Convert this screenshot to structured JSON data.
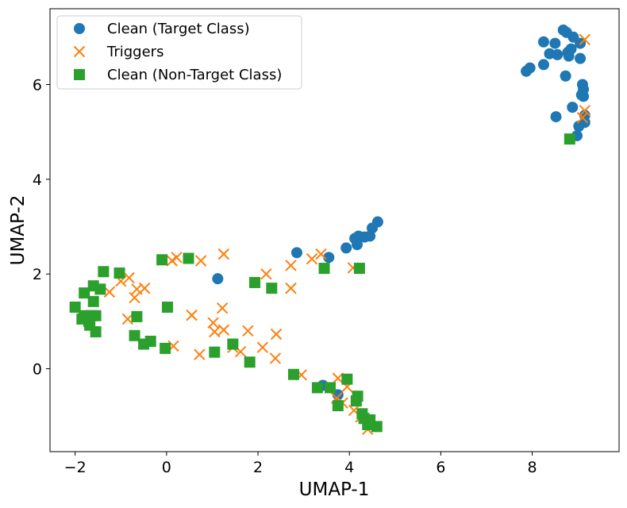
{
  "chart_data": {
    "type": "scatter",
    "title": "",
    "xlabel": "UMAP-1",
    "ylabel": "UMAP-2",
    "xlim": [
      -2.55,
      9.9
    ],
    "ylim": [
      -1.75,
      7.6
    ],
    "xticks": [
      -2,
      0,
      2,
      4,
      6,
      8
    ],
    "yticks": [
      0,
      2,
      4,
      6
    ],
    "xtick_labels": [
      "−2",
      "0",
      "2",
      "4",
      "6",
      "8"
    ],
    "ytick_labels": [
      "0",
      "2",
      "4",
      "6"
    ],
    "grid": false,
    "legend_position": "top-left",
    "series": [
      {
        "name": "Clean (Target Class)",
        "marker": "circle",
        "color": "#1f77b4",
        "points": [
          [
            8.68,
            7.15
          ],
          [
            8.75,
            7.1
          ],
          [
            8.9,
            7.0
          ],
          [
            8.25,
            6.9
          ],
          [
            8.5,
            6.87
          ],
          [
            9.05,
            6.87
          ],
          [
            8.38,
            6.65
          ],
          [
            8.55,
            6.63
          ],
          [
            8.78,
            6.68
          ],
          [
            8.85,
            6.75
          ],
          [
            8.8,
            6.6
          ],
          [
            9.05,
            6.55
          ],
          [
            8.25,
            6.42
          ],
          [
            7.95,
            6.35
          ],
          [
            7.87,
            6.28
          ],
          [
            8.73,
            6.18
          ],
          [
            9.1,
            6.0
          ],
          [
            9.12,
            5.9
          ],
          [
            9.08,
            5.78
          ],
          [
            9.12,
            5.75
          ],
          [
            8.88,
            5.52
          ],
          [
            9.15,
            5.35
          ],
          [
            8.52,
            5.32
          ],
          [
            9.15,
            5.2
          ],
          [
            9.02,
            5.12
          ],
          [
            8.98,
            4.92
          ],
          [
            4.62,
            3.1
          ],
          [
            4.5,
            2.97
          ],
          [
            4.2,
            2.8
          ],
          [
            4.45,
            2.8
          ],
          [
            4.33,
            2.78
          ],
          [
            4.12,
            2.75
          ],
          [
            4.17,
            2.62
          ],
          [
            3.93,
            2.55
          ],
          [
            2.85,
            2.45
          ],
          [
            3.55,
            2.35
          ],
          [
            1.12,
            1.9
          ],
          [
            3.42,
            -0.35
          ],
          [
            3.75,
            -0.55
          ]
        ]
      },
      {
        "name": "Triggers",
        "marker": "x",
        "color": "#ff7f0e",
        "points": [
          [
            9.15,
            6.95
          ],
          [
            9.15,
            5.45
          ],
          [
            9.1,
            5.3
          ],
          [
            0.22,
            2.35
          ],
          [
            0.12,
            2.28
          ],
          [
            0.75,
            2.28
          ],
          [
            1.25,
            2.42
          ],
          [
            2.72,
            2.18
          ],
          [
            3.18,
            2.32
          ],
          [
            3.38,
            2.42
          ],
          [
            4.08,
            2.13
          ],
          [
            2.18,
            2.0
          ],
          [
            -0.82,
            1.92
          ],
          [
            -1.0,
            1.85
          ],
          [
            -1.25,
            1.62
          ],
          [
            -0.65,
            1.68
          ],
          [
            -0.48,
            1.7
          ],
          [
            -0.7,
            1.5
          ],
          [
            2.72,
            1.7
          ],
          [
            1.22,
            1.28
          ],
          [
            -0.85,
            1.05
          ],
          [
            0.55,
            1.13
          ],
          [
            1.02,
            0.97
          ],
          [
            1.05,
            0.78
          ],
          [
            1.25,
            0.82
          ],
          [
            1.78,
            0.8
          ],
          [
            2.4,
            0.73
          ],
          [
            0.15,
            0.48
          ],
          [
            1.45,
            0.45
          ],
          [
            1.62,
            0.36
          ],
          [
            2.1,
            0.45
          ],
          [
            0.72,
            0.3
          ],
          [
            2.38,
            0.22
          ],
          [
            2.95,
            -0.13
          ],
          [
            3.75,
            -0.2
          ],
          [
            3.95,
            -0.38
          ],
          [
            3.72,
            -0.62
          ],
          [
            3.85,
            -0.72
          ],
          [
            4.1,
            -0.88
          ],
          [
            4.25,
            -1.02
          ],
          [
            4.4,
            -1.28
          ]
        ]
      },
      {
        "name": "Clean (Non-Target Class)",
        "marker": "square",
        "color": "#2ca02c",
        "points": [
          [
            8.82,
            4.85
          ],
          [
            -1.38,
            2.05
          ],
          [
            -1.03,
            2.02
          ],
          [
            -0.1,
            2.3
          ],
          [
            0.48,
            2.33
          ],
          [
            3.45,
            2.12
          ],
          [
            4.22,
            2.12
          ],
          [
            1.93,
            1.82
          ],
          [
            2.3,
            1.7
          ],
          [
            -1.6,
            1.75
          ],
          [
            -1.45,
            1.68
          ],
          [
            -1.8,
            1.6
          ],
          [
            -1.6,
            1.42
          ],
          [
            -2.0,
            1.3
          ],
          [
            0.02,
            1.3
          ],
          [
            -1.8,
            1.12
          ],
          [
            -1.65,
            1.12
          ],
          [
            -1.55,
            1.12
          ],
          [
            -1.85,
            1.05
          ],
          [
            -1.7,
            1.0
          ],
          [
            -0.65,
            1.1
          ],
          [
            -1.68,
            0.92
          ],
          [
            -1.55,
            0.78
          ],
          [
            -0.7,
            0.7
          ],
          [
            -0.35,
            0.58
          ],
          [
            -0.5,
            0.52
          ],
          [
            1.45,
            0.52
          ],
          [
            -0.03,
            0.43
          ],
          [
            1.05,
            0.35
          ],
          [
            1.82,
            0.14
          ],
          [
            2.78,
            -0.12
          ],
          [
            3.95,
            -0.22
          ],
          [
            3.3,
            -0.4
          ],
          [
            3.58,
            -0.4
          ],
          [
            4.18,
            -0.58
          ],
          [
            4.15,
            -0.68
          ],
          [
            3.75,
            -0.78
          ],
          [
            4.28,
            -0.95
          ],
          [
            4.32,
            -1.05
          ],
          [
            4.45,
            -1.08
          ],
          [
            4.4,
            -1.18
          ],
          [
            4.6,
            -1.22
          ]
        ]
      }
    ]
  }
}
